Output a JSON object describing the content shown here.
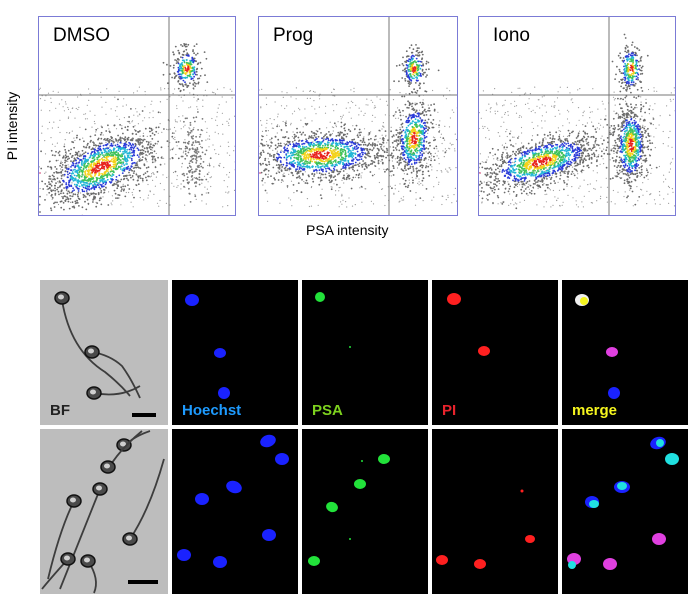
{
  "figure": {
    "flow_panels": [
      {
        "label": "DMSO"
      },
      {
        "label": "Prog"
      },
      {
        "label": "Iono"
      }
    ],
    "y_axis_label": "PI intensity",
    "x_axis_label": "PSA intensity",
    "channels": [
      {
        "label": "BF",
        "color": "#222222"
      },
      {
        "label": "Hoechst",
        "color": "#1e9bff"
      },
      {
        "label": "PSA",
        "color": "#7dd11e"
      },
      {
        "label": "PI",
        "color": "#e8232c"
      },
      {
        "label": "merge",
        "color": "#f5f51e"
      }
    ]
  }
}
